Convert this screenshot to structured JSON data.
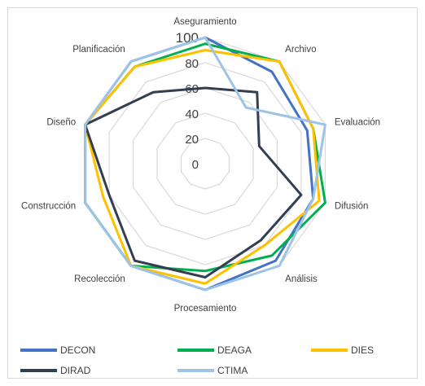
{
  "chart_data": {
    "type": "radar",
    "title": "",
    "categories": [
      "Aseguramiento",
      "Archivo",
      "Evaluación",
      "Difusión",
      "Análisis",
      "Procesamiento",
      "Recolección",
      "Construcción",
      "Diseño",
      "Planificación"
    ],
    "radial_ticks": [
      "0",
      "20",
      "40",
      "60",
      "80",
      "100"
    ],
    "rlim": [
      0,
      100
    ],
    "grid": true,
    "legend_position": "bottom",
    "series": [
      {
        "name": "DECON",
        "color": "#4472c4",
        "values": [
          100,
          90,
          85,
          90,
          95,
          100,
          100,
          100,
          100,
          100
        ]
      },
      {
        "name": "DEAGA",
        "color": "#00b050",
        "values": [
          95,
          100,
          90,
          100,
          90,
          85,
          100,
          100,
          100,
          95
        ]
      },
      {
        "name": "DIES",
        "color": "#ffc000",
        "values": [
          90,
          100,
          90,
          95,
          80,
          95,
          100,
          85,
          100,
          95
        ]
      },
      {
        "name": "DIRAD",
        "color": "#333f50",
        "values": [
          60,
          70,
          45,
          80,
          75,
          90,
          95,
          80,
          100,
          70
        ]
      },
      {
        "name": "CTIMA",
        "color": "#9dc3e6",
        "values": [
          100,
          55,
          100,
          90,
          100,
          100,
          100,
          100,
          100,
          100
        ]
      }
    ]
  }
}
